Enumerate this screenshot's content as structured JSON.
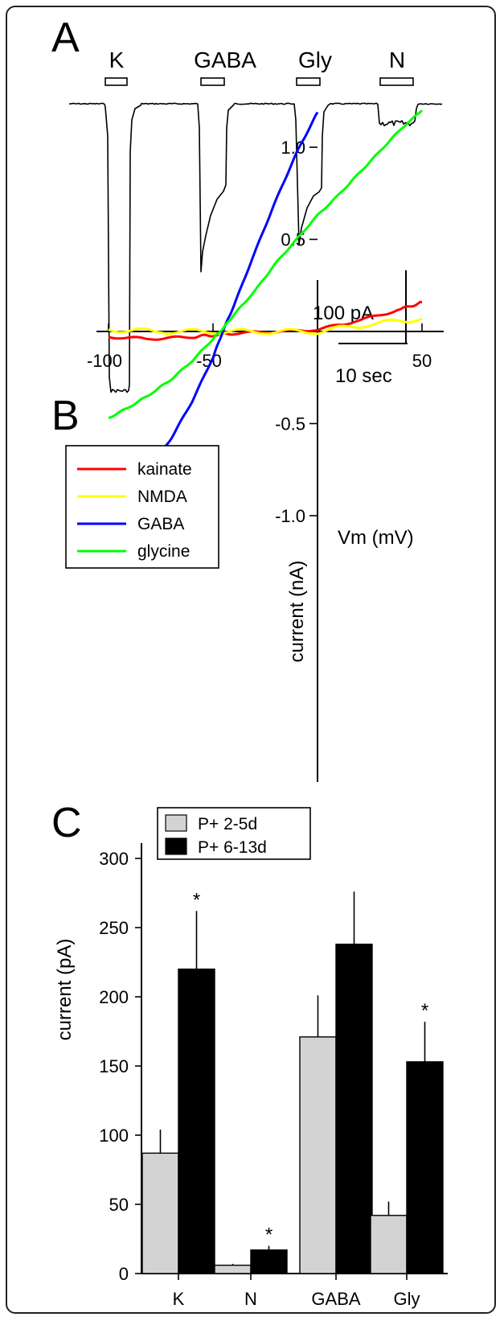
{
  "panels": {
    "A": {
      "label": "A",
      "stimuli": [
        "K",
        "GABA",
        "Gly",
        "N"
      ],
      "scalebar": {
        "current": "100 pA",
        "time": "10 sec"
      }
    },
    "B": {
      "label": "B"
    },
    "C": {
      "label": "C"
    }
  },
  "colors": {
    "kainate": "#ff0000",
    "NMDA": "#ffff00",
    "GABA": "#0000ff",
    "glycine": "#00ff00",
    "young": "#d3d3d3",
    "old": "#000000"
  },
  "chart_data": [
    {
      "panel": "A",
      "type": "line",
      "note": "current traces evoked by drug application; inward current downward",
      "series": [
        {
          "name": "K",
          "peak_pA": -255
        },
        {
          "name": "GABA",
          "peak_pA": -146
        },
        {
          "name": "Gly",
          "peak_pA": -122
        },
        {
          "name": "N",
          "peak_pA": -17
        }
      ]
    },
    {
      "panel": "B",
      "type": "line",
      "xlabel": "Vm (mV)",
      "ylabel": "current (nA)",
      "xlim": [
        -100,
        50
      ],
      "ylim": [
        -1.2,
        1.2
      ],
      "xticks": [
        "-100",
        "-50",
        "50"
      ],
      "yticks": [
        "-1.0",
        "-0.5",
        "0.5",
        "1.0"
      ],
      "legend": "top-left",
      "series": [
        {
          "name": "kainate",
          "x": [
            -100,
            -80,
            -60,
            -50,
            -40,
            -20,
            0,
            20,
            40,
            50
          ],
          "y": [
            -0.03,
            -0.04,
            -0.03,
            -0.02,
            -0.01,
            0.0,
            0.01,
            0.06,
            0.12,
            0.16
          ]
        },
        {
          "name": "NMDA",
          "x": [
            -100,
            -75,
            -50,
            -25,
            0,
            25,
            50
          ],
          "y": [
            0.01,
            0.0,
            0.0,
            0.0,
            0.0,
            0.04,
            0.07
          ]
        },
        {
          "name": "GABA",
          "x": [
            -100,
            -90,
            -80,
            -70,
            -60,
            -50,
            -45,
            -40,
            -30,
            -20,
            -10,
            0
          ],
          "y": [
            -1.0,
            -0.88,
            -0.74,
            -0.58,
            -0.38,
            -0.14,
            0.01,
            0.14,
            0.43,
            0.71,
            0.97,
            1.19
          ]
        },
        {
          "name": "glycine",
          "x": [
            -100,
            -90,
            -80,
            -70,
            -60,
            -50,
            -45,
            -40,
            -30,
            -20,
            -10,
            0,
            10,
            20,
            30,
            40,
            50
          ],
          "y": [
            -0.47,
            -0.41,
            -0.34,
            -0.26,
            -0.16,
            -0.04,
            0.02,
            0.09,
            0.22,
            0.37,
            0.5,
            0.63,
            0.74,
            0.86,
            0.98,
            1.1,
            1.2
          ]
        }
      ]
    },
    {
      "panel": "C",
      "type": "bar",
      "ylabel": "current (pA)",
      "ylim": [
        0,
        300
      ],
      "yticks": [
        "0",
        "50",
        "100",
        "150",
        "200",
        "250",
        "300"
      ],
      "categories": [
        "K",
        "N",
        "GABA",
        "Gly"
      ],
      "legend": "top-left",
      "series": [
        {
          "name": "P+ 2-5d",
          "values": [
            87,
            6,
            171,
            42
          ],
          "errors": [
            17,
            1,
            30,
            10
          ]
        },
        {
          "name": "P+ 6-13d",
          "values": [
            220,
            17,
            238,
            153
          ],
          "errors": [
            42,
            3,
            38,
            29
          ]
        }
      ],
      "significance": [
        "*",
        "*",
        "",
        "*"
      ]
    }
  ]
}
